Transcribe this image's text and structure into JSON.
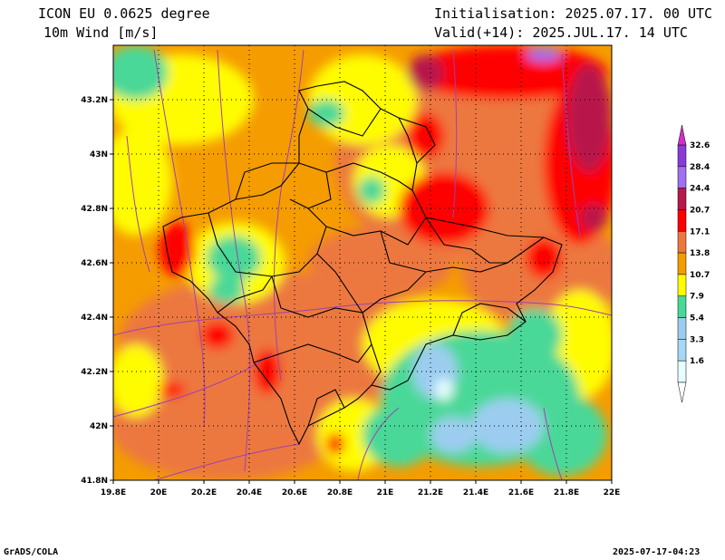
{
  "header": {
    "model": "ICON EU 0.0625 degree",
    "variable": "10m Wind [m/s]",
    "init": "Initialisation: 2025.07.17. 00 UTC",
    "valid": "Valid(+14): 2025.JUL.17. 14 UTC"
  },
  "footer": {
    "credit": "GrADS/COLA",
    "timestamp": "2025-07-17-04:23"
  },
  "axes": {
    "x_ticks": [
      "19.8E",
      "20E",
      "20.2E",
      "20.4E",
      "20.6E",
      "20.8E",
      "21E",
      "21.2E",
      "21.4E",
      "21.6E",
      "21.8E",
      "22E"
    ],
    "y_ticks": [
      "43.2N",
      "43N",
      "42.8N",
      "42.6N",
      "42.4N",
      "42.2N",
      "42N",
      "41.8N"
    ],
    "x_range": [
      19.8,
      22.0
    ],
    "y_range": [
      41.8,
      43.4
    ],
    "grid": "dotted"
  },
  "legend": {
    "labels": [
      "1.6",
      "3.3",
      "5.4",
      "7.9",
      "10.7",
      "13.8",
      "17.1",
      "20.7",
      "24.4",
      "28.4",
      "32.6"
    ],
    "colors": [
      "#e6ffff",
      "#a6d8f5",
      "#9ccdf0",
      "#48d898",
      "#fffc00",
      "#f59c00",
      "#ec7840",
      "#ff0000",
      "#b8184c",
      "#a070f0",
      "#8a3ad8"
    ],
    "top_arrow_color": "#d030c8"
  },
  "colors": {
    "border": "#000000",
    "streamline": "#a040b0"
  }
}
